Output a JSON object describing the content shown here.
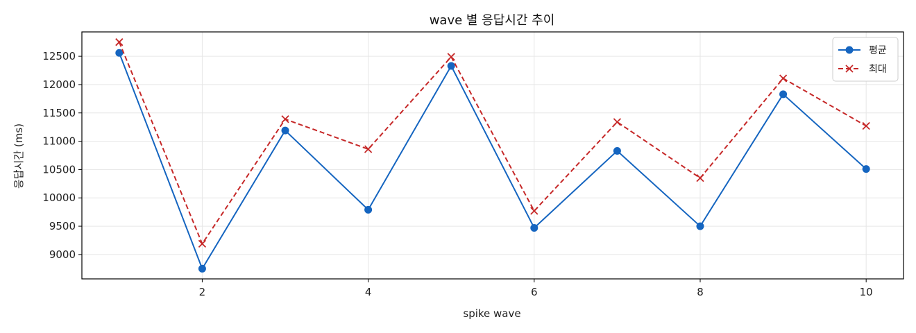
{
  "chart_data": {
    "type": "line",
    "title": "wave 별 응답시간 추이",
    "xlabel": "spike wave",
    "ylabel": "응답시간 (ms)",
    "x": [
      1,
      2,
      3,
      4,
      5,
      6,
      7,
      8,
      9,
      10
    ],
    "xlim": [
      0.55,
      10.45
    ],
    "ylim": [
      8570,
      12930
    ],
    "xticks": [
      2,
      4,
      6,
      8,
      10
    ],
    "yticks": [
      9000,
      9500,
      10000,
      10500,
      11000,
      11500,
      12000,
      12500
    ],
    "grid": true,
    "legend_position": "top-right",
    "series": [
      {
        "name": "평균",
        "values": [
          12560,
          8750,
          11190,
          9790,
          12330,
          9470,
          10830,
          9500,
          11830,
          10510
        ],
        "color": "#1565c0",
        "line_style": "solid",
        "marker": "circle"
      },
      {
        "name": "최대",
        "values": [
          12750,
          9190,
          11390,
          10860,
          12490,
          9770,
          11340,
          10350,
          12110,
          11270
        ],
        "color": "#c62828",
        "line_style": "dashed",
        "marker": "x"
      }
    ]
  }
}
